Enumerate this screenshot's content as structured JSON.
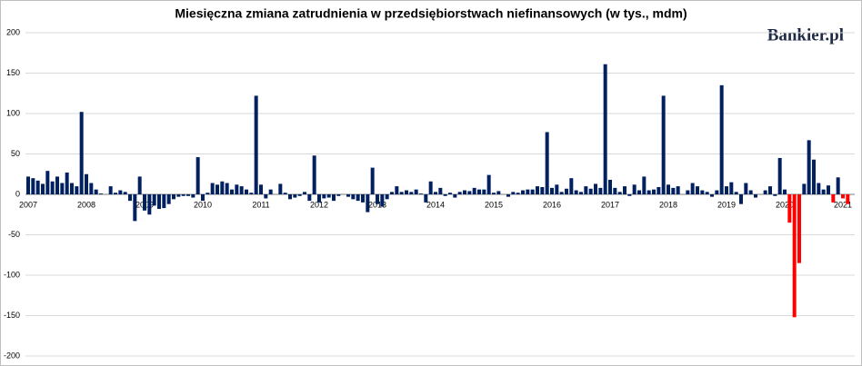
{
  "chart_data": {
    "type": "bar",
    "title": "Miesięczna zmiana zatrudnienia w przedsiębiorstwach niefinansowych (w tys., mdm)",
    "annotation": "Bankier.pl",
    "categories": [
      "2007",
      null,
      null,
      null,
      null,
      null,
      null,
      null,
      null,
      null,
      null,
      null,
      "2008",
      null,
      null,
      null,
      null,
      null,
      null,
      null,
      null,
      null,
      null,
      null,
      "2009",
      null,
      null,
      null,
      null,
      null,
      null,
      null,
      null,
      null,
      null,
      null,
      "2010",
      null,
      null,
      null,
      null,
      null,
      null,
      null,
      null,
      null,
      null,
      null,
      "2011",
      null,
      null,
      null,
      null,
      null,
      null,
      null,
      null,
      null,
      null,
      null,
      "2012",
      null,
      null,
      null,
      null,
      null,
      null,
      null,
      null,
      null,
      null,
      null,
      "2013",
      null,
      null,
      null,
      null,
      null,
      null,
      null,
      null,
      null,
      null,
      null,
      "2014",
      null,
      null,
      null,
      null,
      null,
      null,
      null,
      null,
      null,
      null,
      null,
      "2015",
      null,
      null,
      null,
      null,
      null,
      null,
      null,
      null,
      null,
      null,
      null,
      "2016",
      null,
      null,
      null,
      null,
      null,
      null,
      null,
      null,
      null,
      null,
      null,
      "2017",
      null,
      null,
      null,
      null,
      null,
      null,
      null,
      null,
      null,
      null,
      null,
      "2018",
      null,
      null,
      null,
      null,
      null,
      null,
      null,
      null,
      null,
      null,
      null,
      "2019",
      null,
      null,
      null,
      null,
      null,
      null,
      null,
      null,
      null,
      null,
      null,
      "2020",
      null,
      null,
      null,
      null,
      null,
      null,
      null,
      null,
      null,
      null,
      null,
      "2021",
      null
    ],
    "values": [
      22,
      20,
      17,
      13,
      29,
      16,
      22,
      14,
      27,
      14,
      10,
      102,
      25,
      14,
      6,
      1,
      0,
      10,
      2,
      5,
      3,
      -8,
      -33,
      22,
      -20,
      -25,
      -14,
      -18,
      -17,
      -12,
      -6,
      -3,
      -2,
      -2,
      -4,
      46,
      -8,
      2,
      14,
      12,
      16,
      14,
      6,
      12,
      10,
      6,
      2,
      122,
      12,
      -5,
      6,
      0,
      13,
      2,
      -6,
      -4,
      -2,
      3,
      -8,
      48,
      -10,
      -5,
      -4,
      -8,
      -2,
      0,
      -3,
      -6,
      -8,
      -10,
      -22,
      33,
      -12,
      -15,
      -6,
      3,
      10,
      3,
      5,
      3,
      6,
      1,
      -10,
      16,
      3,
      8,
      -2,
      2,
      -4,
      3,
      5,
      4,
      8,
      6,
      6,
      24,
      2,
      4,
      0,
      -3,
      3,
      2,
      5,
      6,
      6,
      10,
      9,
      77,
      8,
      12,
      3,
      7,
      20,
      5,
      3,
      10,
      7,
      13,
      8,
      161,
      18,
      8,
      3,
      10,
      -2,
      12,
      5,
      22,
      5,
      6,
      9,
      122,
      12,
      8,
      10,
      0,
      5,
      14,
      10,
      5,
      3,
      -3,
      5,
      135,
      10,
      15,
      3,
      -12,
      14,
      5,
      -4,
      0,
      5,
      10,
      -2,
      45,
      6,
      -35,
      -152,
      -85,
      13,
      67,
      43,
      14,
      6,
      11,
      -10,
      21,
      -5,
      -12
    ],
    "colors": [
      "#002060",
      "#002060",
      "#002060",
      "#002060",
      "#002060",
      "#002060",
      "#002060",
      "#002060",
      "#002060",
      "#002060",
      "#002060",
      "#002060",
      "#002060",
      "#002060",
      "#002060",
      "#002060",
      "#002060",
      "#002060",
      "#002060",
      "#002060",
      "#002060",
      "#002060",
      "#002060",
      "#002060",
      "#002060",
      "#002060",
      "#002060",
      "#002060",
      "#002060",
      "#002060",
      "#002060",
      "#002060",
      "#002060",
      "#002060",
      "#002060",
      "#002060",
      "#002060",
      "#002060",
      "#002060",
      "#002060",
      "#002060",
      "#002060",
      "#002060",
      "#002060",
      "#002060",
      "#002060",
      "#002060",
      "#002060",
      "#002060",
      "#002060",
      "#002060",
      "#002060",
      "#002060",
      "#002060",
      "#002060",
      "#002060",
      "#002060",
      "#002060",
      "#002060",
      "#002060",
      "#002060",
      "#002060",
      "#002060",
      "#002060",
      "#002060",
      "#002060",
      "#002060",
      "#002060",
      "#002060",
      "#002060",
      "#002060",
      "#002060",
      "#002060",
      "#002060",
      "#002060",
      "#002060",
      "#002060",
      "#002060",
      "#002060",
      "#002060",
      "#002060",
      "#002060",
      "#002060",
      "#002060",
      "#002060",
      "#002060",
      "#002060",
      "#002060",
      "#002060",
      "#002060",
      "#002060",
      "#002060",
      "#002060",
      "#002060",
      "#002060",
      "#002060",
      "#002060",
      "#002060",
      "#002060",
      "#002060",
      "#002060",
      "#002060",
      "#002060",
      "#002060",
      "#002060",
      "#002060",
      "#002060",
      "#002060",
      "#002060",
      "#002060",
      "#002060",
      "#002060",
      "#002060",
      "#002060",
      "#002060",
      "#002060",
      "#002060",
      "#002060",
      "#002060",
      "#002060",
      "#002060",
      "#002060",
      "#002060",
      "#002060",
      "#002060",
      "#002060",
      "#002060",
      "#002060",
      "#002060",
      "#002060",
      "#002060",
      "#002060",
      "#002060",
      "#002060",
      "#002060",
      "#002060",
      "#002060",
      "#002060",
      "#002060",
      "#002060",
      "#002060",
      "#002060",
      "#002060",
      "#002060",
      "#002060",
      "#002060",
      "#002060",
      "#002060",
      "#002060",
      "#002060",
      "#002060",
      "#002060",
      "#002060",
      "#002060",
      "#002060",
      "#002060",
      "#002060",
      "#ff0000",
      "#ff0000",
      "#ff0000",
      "#002060",
      "#002060",
      "#002060",
      "#002060",
      "#002060",
      "#002060",
      "#ff0000",
      "#002060",
      "#ff0000",
      "#ff0000"
    ],
    "ylim": [
      -200,
      200
    ],
    "yticks": [
      -200,
      -150,
      -100,
      -50,
      0,
      50,
      100,
      150,
      200
    ],
    "grid": true
  }
}
